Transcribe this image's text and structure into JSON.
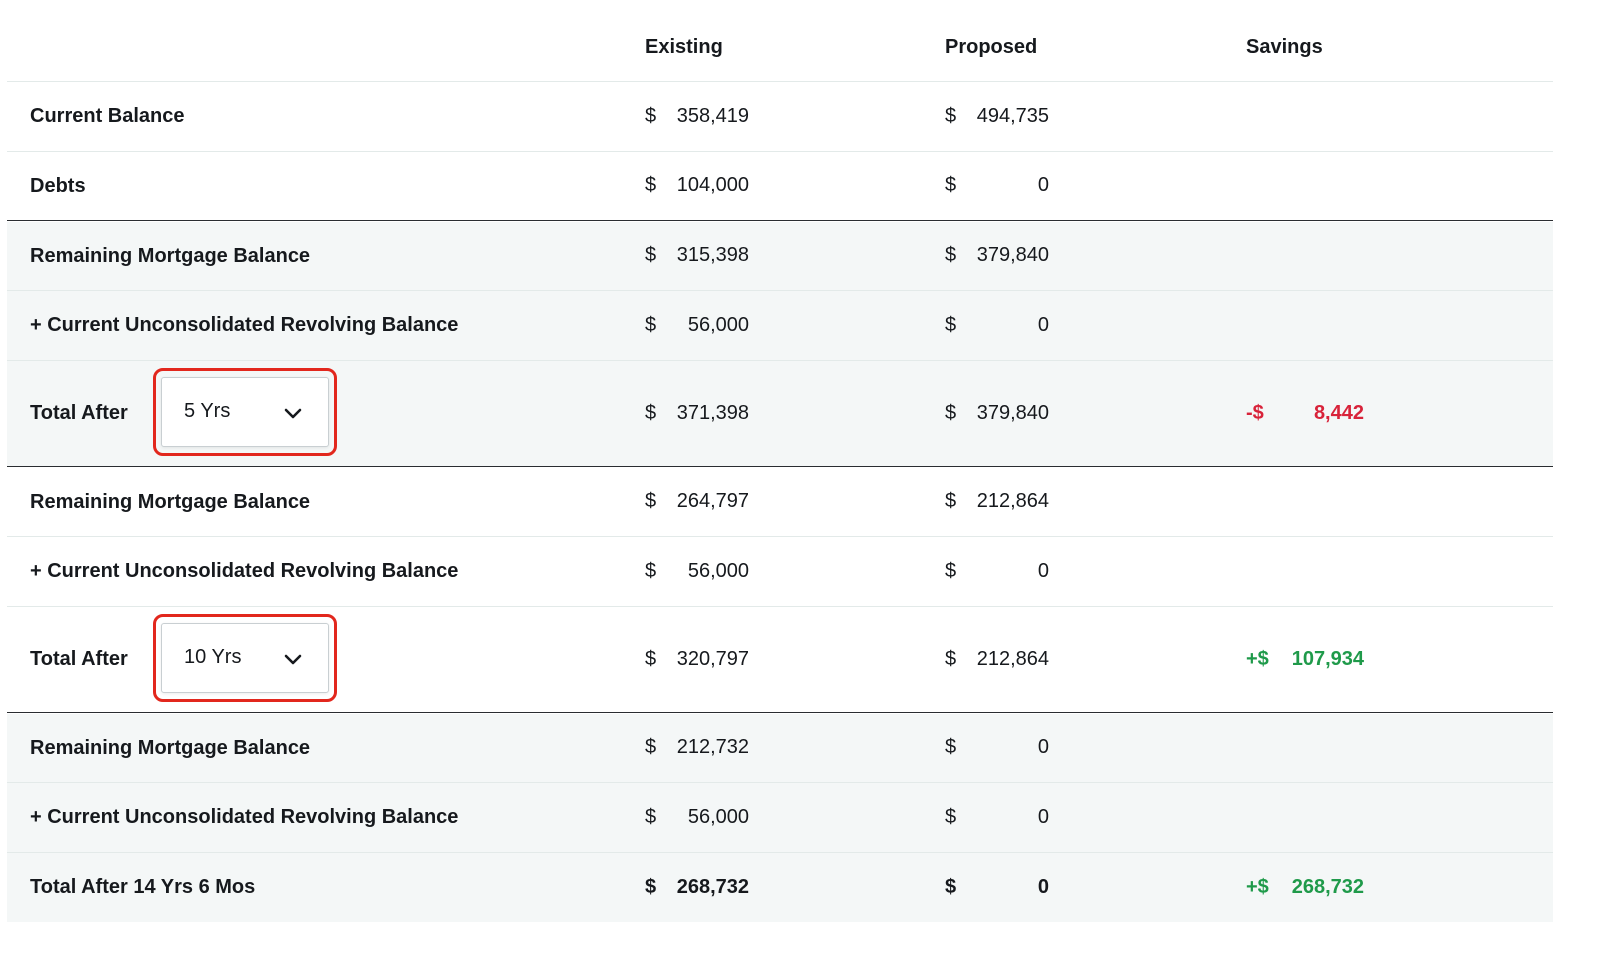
{
  "columns": {
    "existing": "Existing",
    "proposed": "Proposed",
    "savings": "Savings"
  },
  "rows": [
    {
      "label": "Current Balance",
      "existing": {
        "cur": "$",
        "amt": "358,419"
      },
      "proposed": {
        "cur": "$",
        "amt": "494,735"
      }
    },
    {
      "label": "Debts",
      "existing": {
        "cur": "$",
        "amt": "104,000"
      },
      "proposed": {
        "cur": "$",
        "amt": "0"
      }
    },
    {
      "label": "Remaining Mortgage Balance",
      "existing": {
        "cur": "$",
        "amt": "315,398"
      },
      "proposed": {
        "cur": "$",
        "amt": "379,840"
      }
    },
    {
      "label": "+ Current Unconsolidated Revolving Balance",
      "existing": {
        "cur": "$",
        "amt": "56,000"
      },
      "proposed": {
        "cur": "$",
        "amt": "0"
      }
    },
    {
      "label": "Total After",
      "select_value": "5 Yrs",
      "existing": {
        "cur": "$",
        "amt": "371,398"
      },
      "proposed": {
        "cur": "$",
        "amt": "379,840"
      },
      "savings": {
        "sign": "-$",
        "amt": "8,442"
      }
    },
    {
      "label": "Remaining Mortgage Balance",
      "existing": {
        "cur": "$",
        "amt": "264,797"
      },
      "proposed": {
        "cur": "$",
        "amt": "212,864"
      }
    },
    {
      "label": "+ Current Unconsolidated Revolving Balance",
      "existing": {
        "cur": "$",
        "amt": "56,000"
      },
      "proposed": {
        "cur": "$",
        "amt": "0"
      }
    },
    {
      "label": "Total After",
      "select_value": "10 Yrs",
      "existing": {
        "cur": "$",
        "amt": "320,797"
      },
      "proposed": {
        "cur": "$",
        "amt": "212,864"
      },
      "savings": {
        "sign": "+$",
        "amt": "107,934"
      }
    },
    {
      "label": "Remaining Mortgage Balance",
      "existing": {
        "cur": "$",
        "amt": "212,732"
      },
      "proposed": {
        "cur": "$",
        "amt": "0"
      }
    },
    {
      "label": "+ Current Unconsolidated Revolving Balance",
      "existing": {
        "cur": "$",
        "amt": "56,000"
      },
      "proposed": {
        "cur": "$",
        "amt": "0"
      }
    },
    {
      "label": "Total After 14 Yrs 6 Mos",
      "existing": {
        "cur": "$",
        "amt": "268,732"
      },
      "proposed": {
        "cur": "$",
        "amt": "0"
      },
      "savings": {
        "sign": "+$",
        "amt": "268,732"
      }
    }
  ],
  "colors": {
    "negative": "#d8233a",
    "positive": "#1f9a4a",
    "highlight": "#e2271d",
    "row_tint": "#f4f7f7"
  },
  "icons": {
    "dropdown": "chevron-down-icon"
  }
}
